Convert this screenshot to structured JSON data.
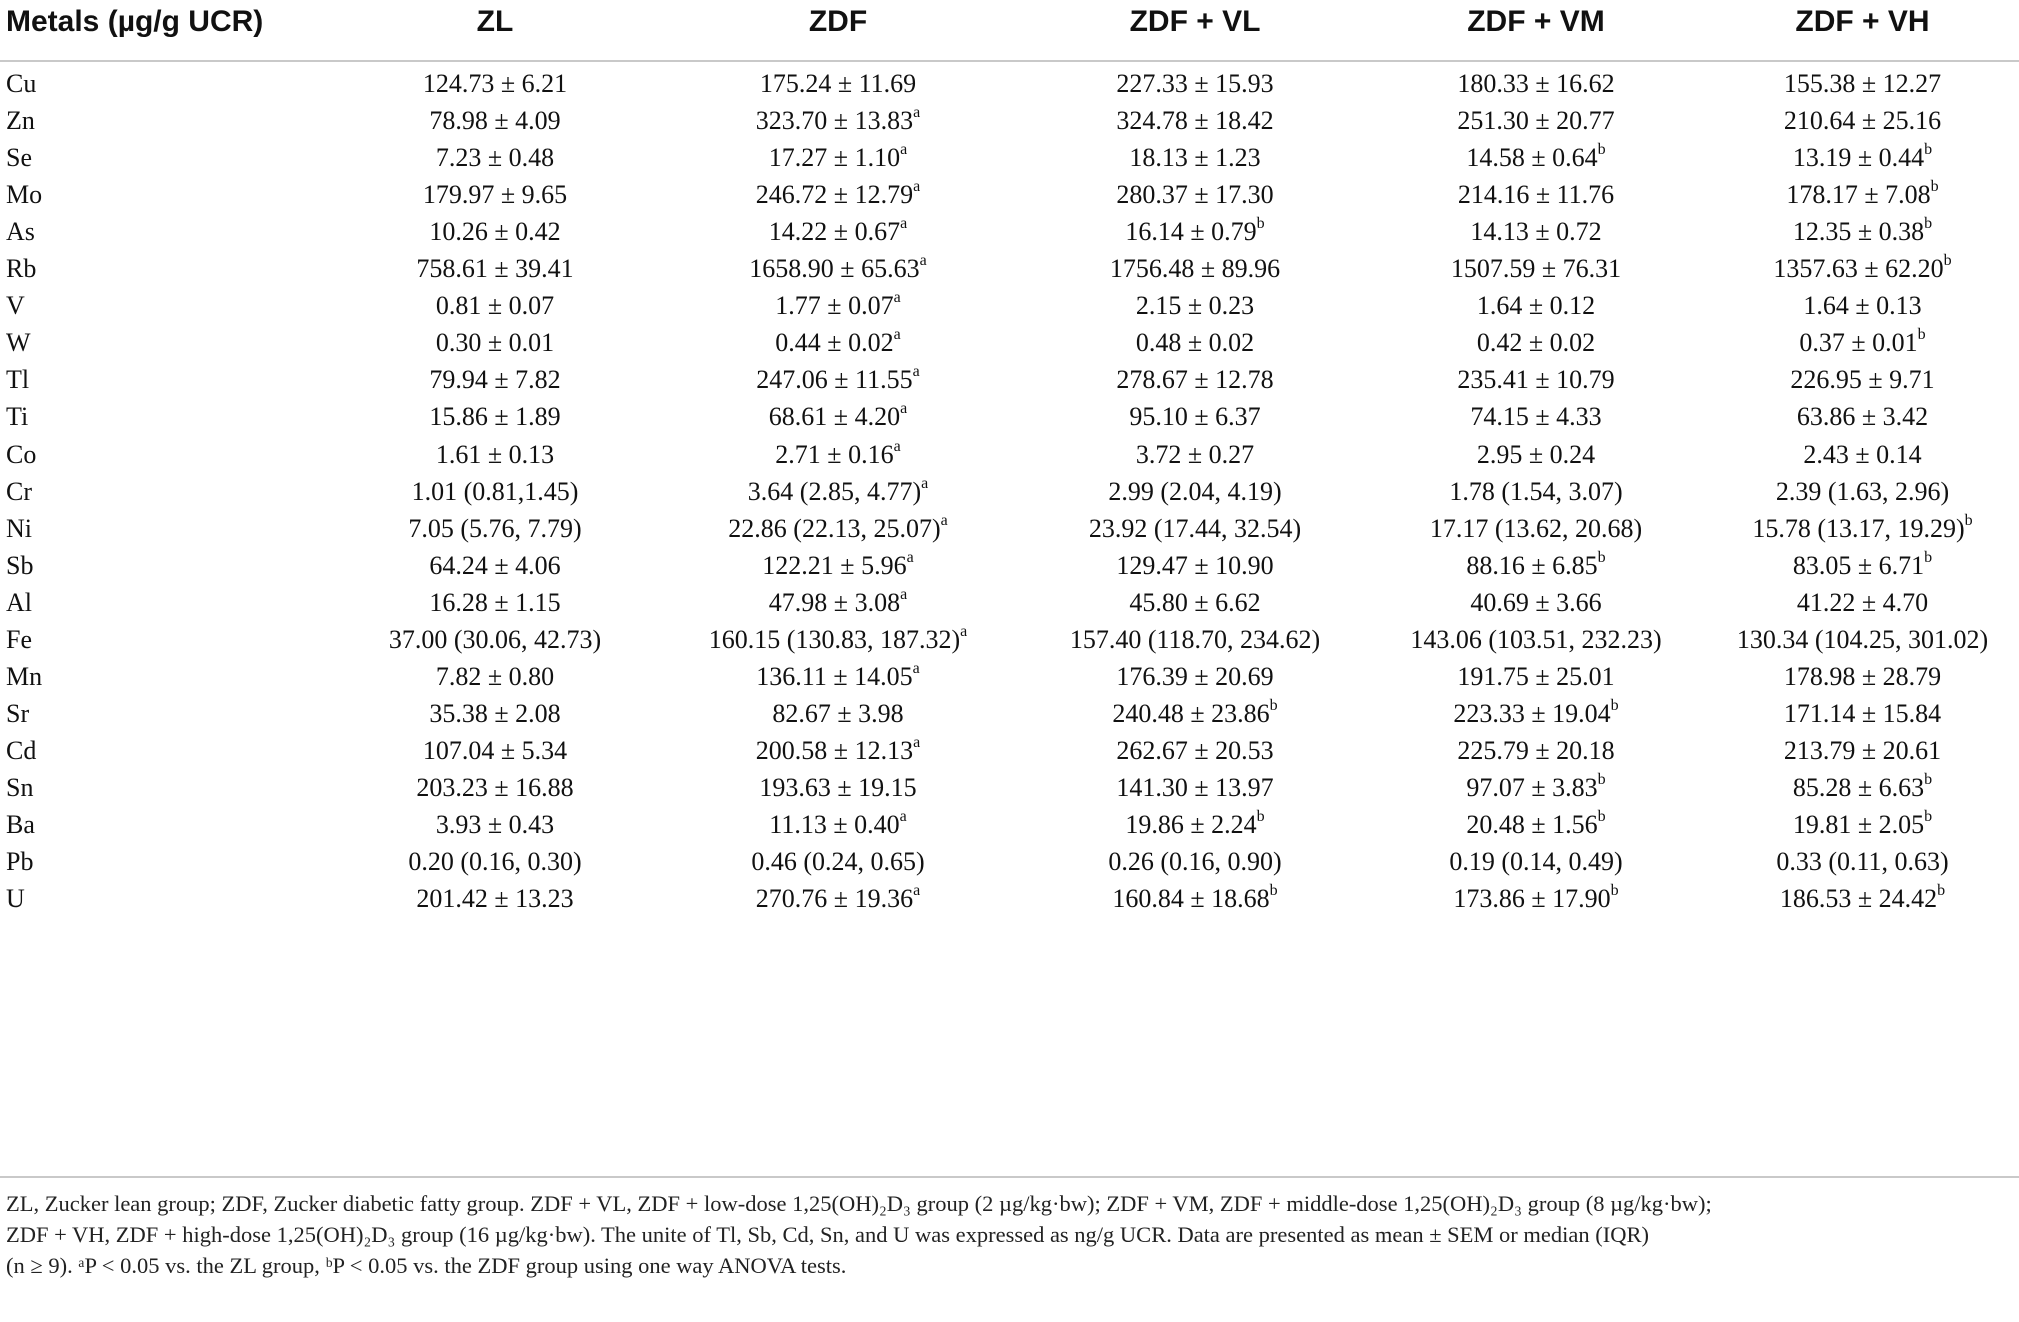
{
  "table": {
    "headers": [
      "Metals (µg/g UCR)",
      "ZL",
      "ZDF",
      "ZDF + VL",
      "ZDF + VM",
      "ZDF + VH"
    ],
    "rows": [
      {
        "metal": "Cu",
        "cells": [
          {
            "v": "124.73 ± 6.21",
            "s": ""
          },
          {
            "v": "175.24 ± 11.69",
            "s": ""
          },
          {
            "v": "227.33 ± 15.93",
            "s": ""
          },
          {
            "v": "180.33 ± 16.62",
            "s": ""
          },
          {
            "v": "155.38 ± 12.27",
            "s": ""
          }
        ]
      },
      {
        "metal": "Zn",
        "cells": [
          {
            "v": "78.98 ± 4.09",
            "s": ""
          },
          {
            "v": "323.70 ± 13.83",
            "s": "a"
          },
          {
            "v": "324.78 ± 18.42",
            "s": ""
          },
          {
            "v": "251.30 ± 20.77",
            "s": ""
          },
          {
            "v": "210.64 ± 25.16",
            "s": ""
          }
        ]
      },
      {
        "metal": "Se",
        "cells": [
          {
            "v": "7.23 ± 0.48",
            "s": ""
          },
          {
            "v": "17.27 ± 1.10",
            "s": "a"
          },
          {
            "v": "18.13 ± 1.23",
            "s": ""
          },
          {
            "v": "14.58 ± 0.64",
            "s": "b"
          },
          {
            "v": "13.19 ± 0.44",
            "s": "b"
          }
        ]
      },
      {
        "metal": "Mo",
        "cells": [
          {
            "v": "179.97 ± 9.65",
            "s": ""
          },
          {
            "v": "246.72 ± 12.79",
            "s": "a"
          },
          {
            "v": "280.37 ± 17.30",
            "s": ""
          },
          {
            "v": "214.16 ± 11.76",
            "s": ""
          },
          {
            "v": "178.17 ± 7.08",
            "s": "b"
          }
        ]
      },
      {
        "metal": "As",
        "cells": [
          {
            "v": "10.26 ± 0.42",
            "s": ""
          },
          {
            "v": "14.22 ± 0.67",
            "s": "a"
          },
          {
            "v": "16.14 ± 0.79",
            "s": "b"
          },
          {
            "v": "14.13 ± 0.72",
            "s": ""
          },
          {
            "v": "12.35 ± 0.38",
            "s": "b"
          }
        ]
      },
      {
        "metal": "Rb",
        "cells": [
          {
            "v": "758.61 ± 39.41",
            "s": ""
          },
          {
            "v": "1658.90 ± 65.63",
            "s": "a"
          },
          {
            "v": "1756.48 ± 89.96",
            "s": ""
          },
          {
            "v": "1507.59 ± 76.31",
            "s": ""
          },
          {
            "v": "1357.63 ± 62.20",
            "s": "b"
          }
        ]
      },
      {
        "metal": "V",
        "cells": [
          {
            "v": "0.81 ± 0.07",
            "s": ""
          },
          {
            "v": "1.77 ± 0.07",
            "s": "a"
          },
          {
            "v": "2.15 ± 0.23",
            "s": ""
          },
          {
            "v": "1.64 ± 0.12",
            "s": ""
          },
          {
            "v": "1.64 ± 0.13",
            "s": ""
          }
        ]
      },
      {
        "metal": "W",
        "cells": [
          {
            "v": "0.30 ± 0.01",
            "s": ""
          },
          {
            "v": "0.44 ± 0.02",
            "s": "a"
          },
          {
            "v": "0.48 ± 0.02",
            "s": ""
          },
          {
            "v": "0.42 ± 0.02",
            "s": ""
          },
          {
            "v": "0.37 ± 0.01",
            "s": "b"
          }
        ]
      },
      {
        "metal": "Tl",
        "cells": [
          {
            "v": "79.94 ± 7.82",
            "s": ""
          },
          {
            "v": "247.06 ± 11.55",
            "s": "a"
          },
          {
            "v": "278.67 ± 12.78",
            "s": ""
          },
          {
            "v": "235.41 ± 10.79",
            "s": ""
          },
          {
            "v": "226.95 ± 9.71",
            "s": ""
          }
        ]
      },
      {
        "metal": "Ti",
        "cells": [
          {
            "v": "15.86 ± 1.89",
            "s": ""
          },
          {
            "v": "68.61 ± 4.20",
            "s": "a"
          },
          {
            "v": "95.10 ± 6.37",
            "s": ""
          },
          {
            "v": "74.15 ± 4.33",
            "s": ""
          },
          {
            "v": "63.86 ± 3.42",
            "s": ""
          }
        ]
      },
      {
        "metal": "Co",
        "cells": [
          {
            "v": "1.61 ± 0.13",
            "s": ""
          },
          {
            "v": "2.71 ± 0.16",
            "s": "a"
          },
          {
            "v": "3.72 ± 0.27",
            "s": ""
          },
          {
            "v": "2.95 ± 0.24",
            "s": ""
          },
          {
            "v": "2.43 ± 0.14",
            "s": ""
          }
        ]
      },
      {
        "metal": "Cr",
        "cells": [
          {
            "v": "1.01 (0.81,1.45)",
            "s": ""
          },
          {
            "v": "3.64 (2.85, 4.77)",
            "s": "a"
          },
          {
            "v": "2.99 (2.04, 4.19)",
            "s": ""
          },
          {
            "v": "1.78 (1.54, 3.07)",
            "s": ""
          },
          {
            "v": "2.39 (1.63, 2.96)",
            "s": ""
          }
        ]
      },
      {
        "metal": "Ni",
        "cells": [
          {
            "v": "7.05 (5.76, 7.79)",
            "s": ""
          },
          {
            "v": "22.86 (22.13, 25.07)",
            "s": "a"
          },
          {
            "v": "23.92 (17.44, 32.54)",
            "s": ""
          },
          {
            "v": "17.17 (13.62, 20.68)",
            "s": ""
          },
          {
            "v": "15.78 (13.17, 19.29)",
            "s": "b"
          }
        ]
      },
      {
        "metal": "Sb",
        "cells": [
          {
            "v": "64.24 ± 4.06",
            "s": ""
          },
          {
            "v": "122.21 ± 5.96",
            "s": "a"
          },
          {
            "v": "129.47 ± 10.90",
            "s": ""
          },
          {
            "v": "88.16 ± 6.85",
            "s": "b"
          },
          {
            "v": "83.05 ± 6.71",
            "s": "b"
          }
        ]
      },
      {
        "metal": "Al",
        "cells": [
          {
            "v": "16.28 ± 1.15",
            "s": ""
          },
          {
            "v": "47.98 ± 3.08",
            "s": "a"
          },
          {
            "v": "45.80 ± 6.62",
            "s": ""
          },
          {
            "v": "40.69 ± 3.66",
            "s": ""
          },
          {
            "v": "41.22 ± 4.70",
            "s": ""
          }
        ]
      },
      {
        "metal": "Fe",
        "cells": [
          {
            "v": "37.00 (30.06, 42.73)",
            "s": ""
          },
          {
            "v": "160.15 (130.83, 187.32)",
            "s": "a"
          },
          {
            "v": "157.40 (118.70, 234.62)",
            "s": ""
          },
          {
            "v": "143.06 (103.51, 232.23)",
            "s": ""
          },
          {
            "v": "130.34 (104.25, 301.02)",
            "s": ""
          }
        ]
      },
      {
        "metal": "Mn",
        "cells": [
          {
            "v": "7.82 ± 0.80",
            "s": ""
          },
          {
            "v": "136.11 ± 14.05",
            "s": "a"
          },
          {
            "v": "176.39 ± 20.69",
            "s": ""
          },
          {
            "v": "191.75 ± 25.01",
            "s": ""
          },
          {
            "v": "178.98 ± 28.79",
            "s": ""
          }
        ]
      },
      {
        "metal": "Sr",
        "cells": [
          {
            "v": "35.38 ± 2.08",
            "s": ""
          },
          {
            "v": "82.67 ± 3.98",
            "s": ""
          },
          {
            "v": "240.48 ± 23.86",
            "s": "b"
          },
          {
            "v": "223.33 ± 19.04",
            "s": "b"
          },
          {
            "v": "171.14 ± 15.84",
            "s": ""
          }
        ]
      },
      {
        "metal": "Cd",
        "cells": [
          {
            "v": "107.04 ± 5.34",
            "s": ""
          },
          {
            "v": "200.58 ± 12.13",
            "s": "a"
          },
          {
            "v": "262.67 ± 20.53",
            "s": ""
          },
          {
            "v": "225.79 ± 20.18",
            "s": ""
          },
          {
            "v": "213.79 ± 20.61",
            "s": ""
          }
        ]
      },
      {
        "metal": "Sn",
        "cells": [
          {
            "v": "203.23 ± 16.88",
            "s": ""
          },
          {
            "v": "193.63 ± 19.15",
            "s": ""
          },
          {
            "v": "141.30 ± 13.97",
            "s": ""
          },
          {
            "v": "97.07 ± 3.83",
            "s": "b"
          },
          {
            "v": "85.28 ± 6.63",
            "s": "b"
          }
        ]
      },
      {
        "metal": "Ba",
        "cells": [
          {
            "v": "3.93 ± 0.43",
            "s": ""
          },
          {
            "v": "11.13 ± 0.40",
            "s": "a"
          },
          {
            "v": "19.86 ± 2.24",
            "s": "b"
          },
          {
            "v": "20.48 ± 1.56",
            "s": "b"
          },
          {
            "v": "19.81 ± 2.05",
            "s": "b"
          }
        ]
      },
      {
        "metal": "Pb",
        "cells": [
          {
            "v": "0.20 (0.16, 0.30)",
            "s": ""
          },
          {
            "v": "0.46 (0.24, 0.65)",
            "s": ""
          },
          {
            "v": "0.26 (0.16, 0.90)",
            "s": ""
          },
          {
            "v": "0.19 (0.14, 0.49)",
            "s": ""
          },
          {
            "v": "0.33 (0.11, 0.63)",
            "s": ""
          }
        ]
      },
      {
        "metal": "U",
        "cells": [
          {
            "v": "201.42 ± 13.23",
            "s": ""
          },
          {
            "v": "270.76 ± 19.36",
            "s": "a"
          },
          {
            "v": "160.84 ± 18.68",
            "s": "b"
          },
          {
            "v": "173.86 ± 17.90",
            "s": "b"
          },
          {
            "v": "186.53 ± 24.42",
            "s": "b"
          }
        ]
      }
    ]
  },
  "footnote": {
    "line1": "ZL, Zucker lean group; ZDF, Zucker diabetic fatty group. ZDF + VL, ZDF + low-dose 1,25(OH)₂D₃ group (2 µg/kg·bw); ZDF + VM, ZDF + middle-dose 1,25(OH)₂D₃ group (8 µg/kg·bw);",
    "line2": "ZDF + VH, ZDF + high-dose 1,25(OH)₂D₃ group (16 µg/kg·bw). The unite of Tl, Sb, Cd, Sn, and U was expressed as ng/g UCR. Data are presented as mean ± SEM or median (IQR)",
    "line3": "(n ≥ 9). ᵃP < 0.05 vs. the ZL group, ᵇP < 0.05 vs. the ZDF group using one way ANOVA tests."
  }
}
